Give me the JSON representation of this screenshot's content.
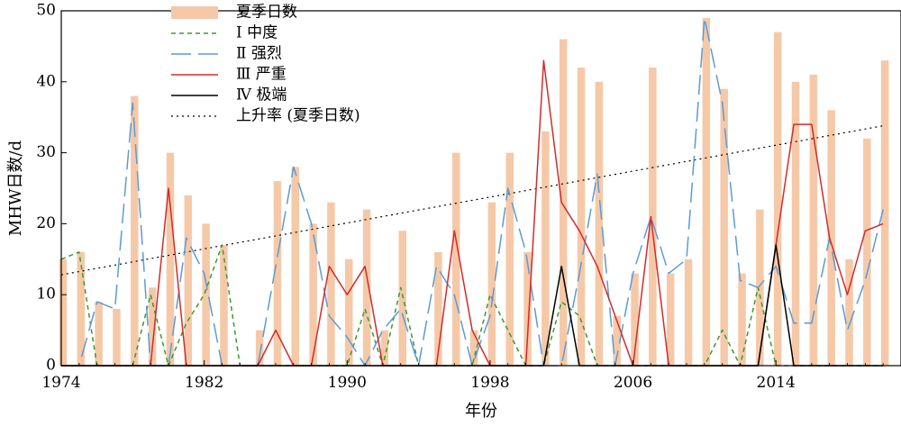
{
  "chart_data": {
    "type": "bar+line",
    "x_label": "年份",
    "y_label": "MHW日数/d",
    "ylim": [
      0,
      50
    ],
    "xlim": [
      1974,
      2021
    ],
    "y_ticks": [
      0,
      10,
      20,
      30,
      40,
      50
    ],
    "x_ticks": [
      1974,
      1982,
      1990,
      1998,
      2006,
      2014
    ],
    "years": [
      1974,
      1975,
      1976,
      1977,
      1978,
      1979,
      1980,
      1981,
      1982,
      1983,
      1984,
      1985,
      1986,
      1987,
      1988,
      1989,
      1990,
      1991,
      1992,
      1993,
      1994,
      1995,
      1996,
      1997,
      1998,
      1999,
      2000,
      2001,
      2002,
      2003,
      2004,
      2005,
      2006,
      2007,
      2008,
      2009,
      2010,
      2011,
      2012,
      2013,
      2014,
      2015,
      2016,
      2017,
      2018,
      2019,
      2020
    ],
    "bars": {
      "name": "夏季日数",
      "color": "#f5c9a8",
      "values": [
        15,
        16,
        9,
        8,
        38,
        11,
        30,
        24,
        20,
        17,
        0,
        5,
        26,
        28,
        20,
        23,
        15,
        22,
        5,
        19,
        0,
        16,
        30,
        5,
        23,
        30,
        16,
        33,
        46,
        42,
        40,
        7,
        13,
        42,
        13,
        15,
        49,
        39,
        13,
        22,
        47,
        40,
        41,
        36,
        15,
        32,
        43
      ]
    },
    "series": [
      {
        "name": "Ⅰ 中度",
        "color": "#3a9a2e",
        "dash": "5,4",
        "values": [
          15,
          16,
          0,
          0,
          0,
          10,
          0,
          6,
          10,
          17,
          0,
          0,
          0,
          0,
          0,
          0,
          0,
          8,
          0,
          11,
          0,
          0,
          0,
          0,
          10,
          5,
          0,
          0,
          9,
          7,
          0,
          0,
          0,
          0,
          0,
          0,
          0,
          5,
          0,
          11,
          0,
          0,
          0,
          0,
          0,
          0,
          0
        ]
      },
      {
        "name": "Ⅱ 强烈",
        "color": "#5b9bd5",
        "dash": "22,8",
        "values": [
          0,
          0,
          9,
          8,
          37,
          0,
          0,
          18,
          13,
          0,
          0,
          0,
          14,
          28,
          20,
          7,
          4,
          0,
          5,
          8,
          0,
          14,
          10,
          0,
          7,
          25,
          16,
          0,
          0,
          13,
          27,
          0,
          13,
          21,
          13,
          15,
          49,
          37,
          12,
          11,
          14,
          6,
          6,
          18,
          5,
          12,
          22
        ]
      },
      {
        "name": "Ⅲ 严重",
        "color": "#d42a2a",
        "dash": "",
        "values": [
          0,
          0,
          0,
          0,
          0,
          0,
          25,
          0,
          0,
          0,
          0,
          0,
          5,
          0,
          0,
          14,
          10,
          14,
          0,
          0,
          0,
          0,
          19,
          5,
          0,
          0,
          0,
          43,
          23,
          19,
          14,
          7,
          0,
          21,
          0,
          0,
          0,
          0,
          0,
          0,
          17,
          34,
          34,
          18,
          10,
          19,
          20
        ]
      },
      {
        "name": "Ⅳ 极端",
        "color": "#000000",
        "dash": "",
        "values": [
          0,
          0,
          0,
          0,
          0,
          0,
          0,
          0,
          0,
          0,
          0,
          0,
          0,
          0,
          0,
          0,
          0,
          0,
          0,
          0,
          0,
          0,
          0,
          0,
          0,
          0,
          0,
          0,
          14,
          0,
          0,
          0,
          0,
          0,
          0,
          0,
          0,
          0,
          0,
          0,
          17,
          0,
          0,
          0,
          0,
          0,
          0
        ]
      }
    ],
    "trend": {
      "name": "上升率 (夏季日数)",
      "color": "#000000",
      "dash": "2,4",
      "start": [
        1974,
        12.8
      ],
      "end": [
        2020,
        33.8
      ]
    },
    "legend_position": "top-left"
  }
}
